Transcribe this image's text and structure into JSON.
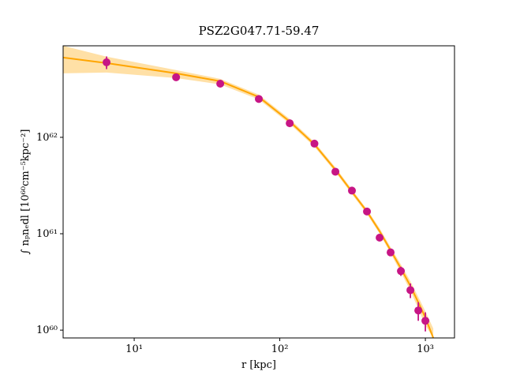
{
  "chart_data": {
    "type": "scatter",
    "title": "PSZ2G047.71-59.47",
    "xlabel": "r [kpc]",
    "ylabel": "∫ nₚnₑdl [10⁶⁰cm⁻⁵kpc⁻²]",
    "xscale": "log",
    "yscale": "log",
    "xlim": [
      3.25,
      1585
    ],
    "ylim": [
      8.3e+59,
      8.9e+62
    ],
    "xticks": [
      {
        "value": 10,
        "label": "10¹"
      },
      {
        "value": 100,
        "label": "10²"
      },
      {
        "value": 1000,
        "label": "10³"
      }
    ],
    "yticks": [
      {
        "value": 1e+60,
        "label": "10⁶⁰"
      },
      {
        "value": 1e+61,
        "label": "10⁶¹"
      },
      {
        "value": 1e+62,
        "label": "10⁶²"
      }
    ],
    "points": {
      "color": "#c71585",
      "x": [
        6.46,
        19.4,
        39,
        71.8,
        117,
        173,
        241,
        313,
        397,
        485,
        577,
        679,
        789,
        894,
        1000
      ],
      "values": [
        6e+62,
        4.2e+62,
        3.6e+62,
        2.5e+62,
        1.4e+62,
        8.6e+61,
        4.4e+61,
        2.8e+61,
        1.7e+61,
        9.1e+60,
        6.4e+60,
        4.1e+60,
        2.6e+60,
        1.6e+60,
        1.25e+60
      ],
      "yerr": [
        9e+61,
        2.5e+61,
        1.5e+61,
        1e+61,
        5e+60,
        3e+60,
        1.5e+60,
        1e+60,
        7e+59,
        4e+59,
        3.5e+59,
        4.5e+59,
        4.5e+59,
        3.5e+59,
        2.8e+59
      ]
    },
    "fit": {
      "color": "#ffa500",
      "x": [
        3.25,
        6.46,
        19.4,
        39,
        71.8,
        117,
        173,
        241,
        313,
        397,
        485,
        577,
        679,
        789,
        894,
        1000,
        1133
      ],
      "values": [
        6.73e+62,
        5.89e+62,
        4.61e+62,
        3.82e+62,
        2.62e+62,
        1.46e+62,
        8.44e+61,
        4.61e+61,
        2.72e+61,
        1.7e+61,
        1.06e+61,
        6.73e+60,
        4.36e+60,
        2.88e+60,
        1.94e+60,
        1.35e+60,
        8.3e+59
      ],
      "upper": [
        8.9e+62,
        6.86e+62,
        4.98e+62,
        4.04e+62,
        2.77e+62,
        1.55e+62,
        8.93e+61,
        4.89e+61,
        2.88e+61,
        1.79e+61,
        1.14e+61,
        7.26e+60,
        4.79e+60,
        3.22e+60,
        2.21e+60,
        1.57e+60,
        1.04e+60
      ],
      "lower": [
        4.61e+62,
        4.7e+62,
        4.12e+62,
        3.54e+62,
        2.47e+62,
        1.38e+62,
        7.98e+61,
        4.36e+61,
        2.57e+61,
        1.6e+61,
        1e+61,
        6.24e+60,
        3.96e+60,
        2.57e+60,
        1.66e+60,
        1.12e+60,
        8.3e+59
      ]
    }
  }
}
